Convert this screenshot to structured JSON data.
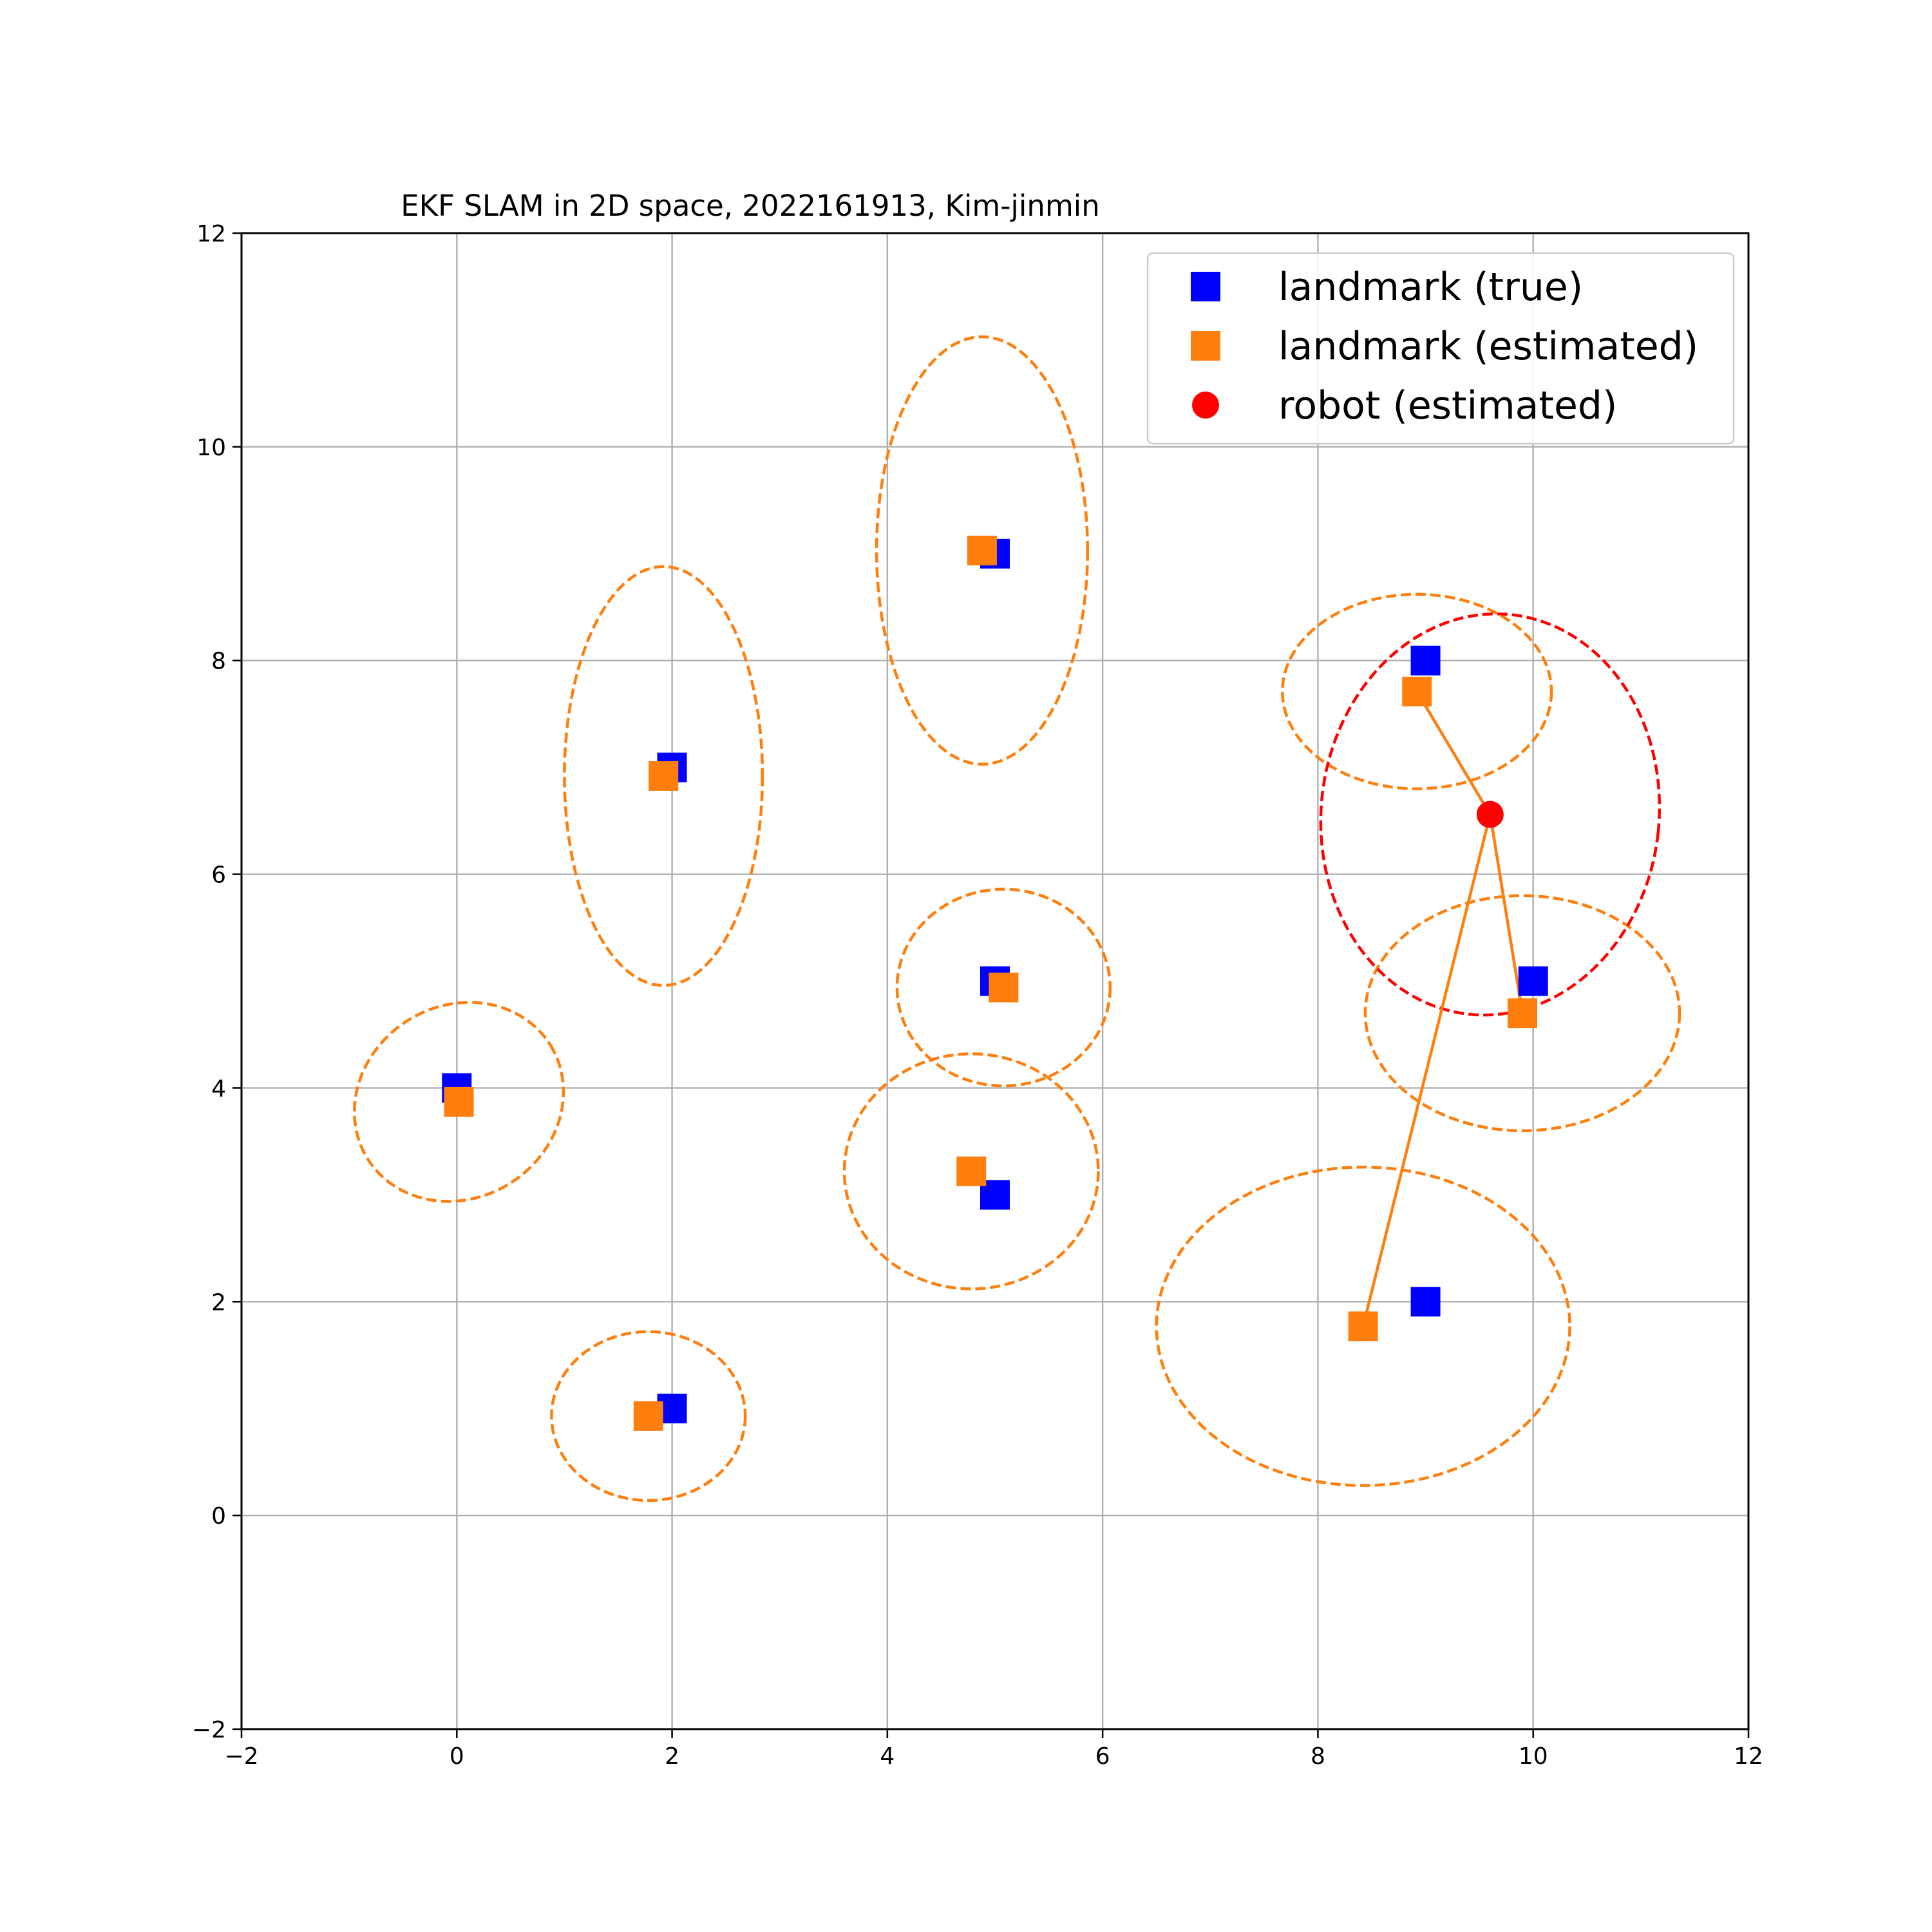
{
  "chart_data": {
    "type": "scatter",
    "title": "EKF SLAM in 2D space, 2022161913, Kim-jinmin",
    "xlabel": "",
    "ylabel": "",
    "xlim": [
      -2,
      12
    ],
    "ylim": [
      -2,
      12
    ],
    "xticks": [
      -2,
      0,
      2,
      4,
      6,
      8,
      10,
      12
    ],
    "yticks": [
      -2,
      0,
      2,
      4,
      6,
      8,
      10,
      12
    ],
    "xtick_labels": [
      "−2",
      "0",
      "2",
      "4",
      "6",
      "8",
      "10",
      "12"
    ],
    "ytick_labels": [
      "−2",
      "0",
      "2",
      "4",
      "6",
      "8",
      "10",
      "12"
    ],
    "grid": true,
    "legend_position": "top-right",
    "legend": [
      {
        "label": "landmark (true)",
        "marker": "square",
        "color": "#0000ff"
      },
      {
        "label": "landmark (estimated)",
        "marker": "square",
        "color": "#ff7f0e"
      },
      {
        "label": "robot (estimated)",
        "marker": "circle",
        "color": "#ff0000"
      }
    ],
    "colors": {
      "landmark_true": "#0000ff",
      "landmark_estimated": "#ff7f0e",
      "robot": "#ff0000",
      "grid": "#b0b0b0"
    },
    "series": [
      {
        "name": "landmark (true)",
        "marker": "square",
        "points": [
          {
            "x": 0,
            "y": 4
          },
          {
            "x": 2,
            "y": 7
          },
          {
            "x": 5,
            "y": 9
          },
          {
            "x": 9,
            "y": 8
          },
          {
            "x": 5,
            "y": 5
          },
          {
            "x": 10,
            "y": 5
          },
          {
            "x": 5,
            "y": 3
          },
          {
            "x": 9,
            "y": 2
          },
          {
            "x": 2,
            "y": 1
          }
        ]
      },
      {
        "name": "landmark (estimated)",
        "marker": "square",
        "points": [
          {
            "x": 0.02,
            "y": 3.87
          },
          {
            "x": 1.92,
            "y": 6.92
          },
          {
            "x": 4.88,
            "y": 9.03
          },
          {
            "x": 8.92,
            "y": 7.71
          },
          {
            "x": 5.08,
            "y": 4.94
          },
          {
            "x": 9.9,
            "y": 4.7
          },
          {
            "x": 4.78,
            "y": 3.22
          },
          {
            "x": 8.42,
            "y": 1.77
          },
          {
            "x": 1.78,
            "y": 0.93
          }
        ]
      },
      {
        "name": "robot (estimated)",
        "marker": "circle",
        "points": [
          {
            "x": 9.6,
            "y": 6.56
          }
        ]
      }
    ],
    "observation_lines": [
      {
        "from": [
          9.6,
          6.56
        ],
        "to": [
          8.92,
          7.71
        ]
      },
      {
        "from": [
          9.6,
          6.56
        ],
        "to": [
          9.9,
          4.7
        ]
      },
      {
        "from": [
          9.6,
          6.56
        ],
        "to": [
          8.42,
          1.77
        ]
      }
    ],
    "covariance_ellipses": [
      {
        "target": "landmark",
        "cx": 0.02,
        "cy": 3.87,
        "rx": 1.0,
        "ry": 0.9,
        "rotation_deg": 32,
        "color": "#ff7f0e"
      },
      {
        "target": "landmark",
        "cx": 1.92,
        "cy": 6.92,
        "rx": 0.92,
        "ry": 1.96,
        "rotation_deg": 0,
        "color": "#ff7f0e"
      },
      {
        "target": "landmark",
        "cx": 4.88,
        "cy": 9.03,
        "rx": 0.98,
        "ry": 2.0,
        "rotation_deg": 0,
        "color": "#ff7f0e"
      },
      {
        "target": "landmark",
        "cx": 8.92,
        "cy": 7.71,
        "rx": 1.25,
        "ry": 0.91,
        "rotation_deg": 0,
        "color": "#ff7f0e"
      },
      {
        "target": "landmark",
        "cx": 5.08,
        "cy": 4.94,
        "rx": 0.99,
        "ry": 0.92,
        "rotation_deg": 0,
        "color": "#ff7f0e"
      },
      {
        "target": "landmark",
        "cx": 9.9,
        "cy": 4.7,
        "rx": 1.46,
        "ry": 1.1,
        "rotation_deg": 0,
        "color": "#ff7f0e"
      },
      {
        "target": "landmark",
        "cx": 4.78,
        "cy": 3.22,
        "rx": 1.18,
        "ry": 1.1,
        "rotation_deg": 0,
        "color": "#ff7f0e"
      },
      {
        "target": "landmark",
        "cx": 8.42,
        "cy": 1.77,
        "rx": 1.92,
        "ry": 1.49,
        "rotation_deg": 0,
        "color": "#ff7f0e"
      },
      {
        "target": "landmark",
        "cx": 1.78,
        "cy": 0.93,
        "rx": 0.9,
        "ry": 0.79,
        "rotation_deg": 0,
        "color": "#ff7f0e"
      },
      {
        "target": "robot",
        "cx": 9.6,
        "cy": 6.56,
        "rx": 1.57,
        "ry": 1.88,
        "rotation_deg": -6,
        "color": "#ff0000"
      }
    ]
  }
}
